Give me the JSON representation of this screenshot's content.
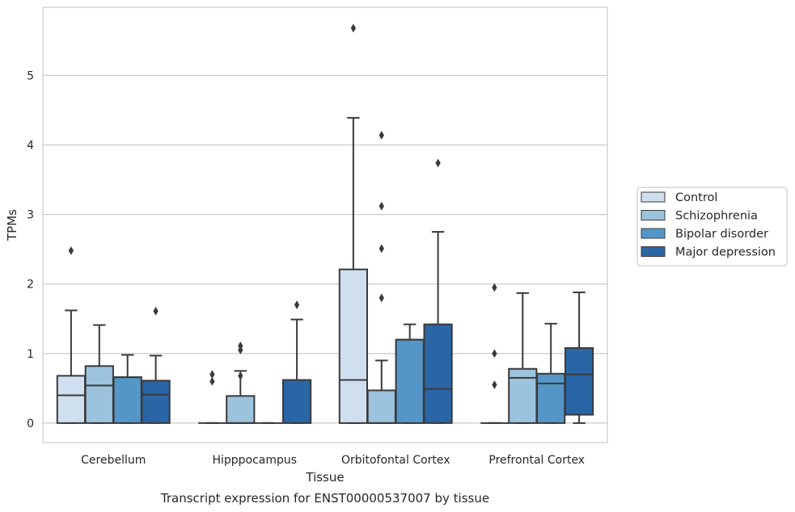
{
  "chart_data": {
    "type": "box",
    "caption": "Transcript expression for ENST00000537007 by tissue",
    "xlabel": "Tissue",
    "ylabel": "TPMs",
    "ylim": [
      -0.28,
      5.98
    ],
    "yticks": [
      0,
      1,
      2,
      3,
      4,
      5
    ],
    "grid": "horizontal",
    "legend_position": "right",
    "categories": [
      "Cerebellum",
      "Hipppocampus",
      "Orbitofontal Cortex",
      "Prefrontal Cortex"
    ],
    "series": [
      {
        "name": "Control",
        "color": "#d0dff0",
        "boxes": [
          {
            "q1": 0,
            "median": 0.4,
            "q3": 0.68,
            "whisker_low": 0,
            "whisker_high": 1.62,
            "outliers": [
              2.48
            ]
          },
          {
            "q1": 0,
            "median": 0,
            "q3": 0,
            "whisker_low": 0,
            "whisker_high": 0,
            "outliers": [
              0.6,
              0.7
            ]
          },
          {
            "q1": 0,
            "median": 0.62,
            "q3": 2.21,
            "whisker_low": 0,
            "whisker_high": 4.39,
            "outliers": [
              5.68
            ]
          },
          {
            "q1": 0,
            "median": 0,
            "q3": 0,
            "whisker_low": 0,
            "whisker_high": 0,
            "outliers": [
              0.55,
              1.0,
              1.95
            ]
          }
        ]
      },
      {
        "name": "Schizophrenia",
        "color": "#9cc3de",
        "boxes": [
          {
            "q1": 0,
            "median": 0.54,
            "q3": 0.82,
            "whisker_low": 0,
            "whisker_high": 1.41,
            "outliers": []
          },
          {
            "q1": 0,
            "median": 0,
            "q3": 0.39,
            "whisker_low": 0,
            "whisker_high": 0.75,
            "outliers": [
              0.68,
              1.05,
              1.11
            ]
          },
          {
            "q1": 0,
            "median": 0,
            "q3": 0.47,
            "whisker_low": 0,
            "whisker_high": 0.9,
            "outliers": [
              1.8,
              2.51,
              3.12,
              4.14
            ]
          },
          {
            "q1": 0,
            "median": 0.65,
            "q3": 0.78,
            "whisker_low": 0,
            "whisker_high": 1.87,
            "outliers": []
          }
        ]
      },
      {
        "name": "Bipolar disorder",
        "color": "#5596c9",
        "boxes": [
          {
            "q1": 0,
            "median": 0.66,
            "q3": 0.66,
            "whisker_low": 0,
            "whisker_high": 0.98,
            "outliers": []
          },
          {
            "q1": 0,
            "median": 0,
            "q3": 0,
            "whisker_low": 0,
            "whisker_high": 0,
            "outliers": []
          },
          {
            "q1": 0,
            "median": 1.2,
            "q3": 1.2,
            "whisker_low": 0,
            "whisker_high": 1.42,
            "outliers": []
          },
          {
            "q1": 0,
            "median": 0.57,
            "q3": 0.71,
            "whisker_low": 0,
            "whisker_high": 1.43,
            "outliers": []
          }
        ]
      },
      {
        "name": "Major depression",
        "color": "#2a66a6",
        "boxes": [
          {
            "q1": 0,
            "median": 0.41,
            "q3": 0.61,
            "whisker_low": 0,
            "whisker_high": 0.97,
            "outliers": [
              1.61
            ]
          },
          {
            "q1": 0,
            "median": 0.62,
            "q3": 0.62,
            "whisker_low": 0,
            "whisker_high": 1.49,
            "outliers": [
              1.7
            ]
          },
          {
            "q1": 0,
            "median": 0.49,
            "q3": 1.42,
            "whisker_low": 0,
            "whisker_high": 2.75,
            "outliers": [
              3.74
            ]
          },
          {
            "q1": 0.12,
            "median": 0.7,
            "q3": 1.08,
            "whisker_low": 0,
            "whisker_high": 1.88,
            "outliers": []
          }
        ]
      }
    ]
  }
}
